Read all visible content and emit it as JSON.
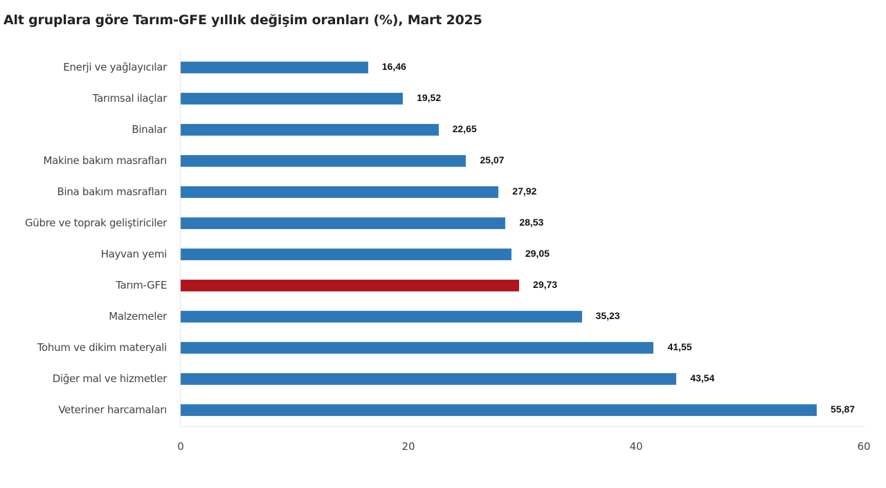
{
  "chart_data": {
    "type": "bar",
    "orientation": "horizontal",
    "title": "Alt gruplara göre Tarım-GFE yıllık değişim oranları (%), Mart 2025",
    "xlabel": "",
    "ylabel": "",
    "xlim": [
      0,
      60
    ],
    "x_ticks": [
      "0",
      "20",
      "40",
      "60"
    ],
    "grid": false,
    "legend": null,
    "categories": [
      "Enerji  ve yağlayıcılar",
      "Tarımsal ilaçlar",
      "Binalar",
      "Makine bakım masrafları",
      "Bina bakım masrafları",
      "Gübre ve toprak geliştiriciler",
      "Hayvan yemi",
      "Tarım-GFE",
      "Malzemeler",
      "Tohum ve dikim materyali",
      "Diğer mal ve hizmetler",
      "Veteriner harcamaları"
    ],
    "values": [
      16.46,
      19.52,
      22.65,
      25.07,
      27.92,
      28.53,
      29.05,
      29.73,
      35.23,
      41.55,
      43.54,
      55.87
    ],
    "value_labels": [
      "16,46",
      "19,52",
      "22,65",
      "25,07",
      "27,92",
      "28,53",
      "29,05",
      "29,73",
      "35,23",
      "41,55",
      "43,54",
      "55,87"
    ],
    "highlight_index": 7,
    "colors": {
      "bar": "#2e78b7",
      "highlight": "#ad141b"
    }
  },
  "chart": {
    "title": "Alt gruplara göre Tarım-GFE yıllık değişim oranları (%), Mart 2025",
    "ticks": [
      "0",
      "20",
      "40",
      "60"
    ],
    "rows": [
      {
        "label": "Enerji  ve yağlayıcılar",
        "value": "16,46"
      },
      {
        "label": "Tarımsal ilaçlar",
        "value": "19,52"
      },
      {
        "label": "Binalar",
        "value": "22,65"
      },
      {
        "label": "Makine bakım masrafları",
        "value": "25,07"
      },
      {
        "label": "Bina bakım masrafları",
        "value": "27,92"
      },
      {
        "label": "Gübre ve toprak geliştiriciler",
        "value": "28,53"
      },
      {
        "label": "Hayvan yemi",
        "value": "29,05"
      },
      {
        "label": "Tarım-GFE",
        "value": "29,73"
      },
      {
        "label": "Malzemeler",
        "value": "35,23"
      },
      {
        "label": "Tohum ve dikim materyali",
        "value": "41,55"
      },
      {
        "label": "Diğer mal ve hizmetler",
        "value": "43,54"
      },
      {
        "label": "Veteriner harcamaları",
        "value": "55,87"
      }
    ]
  }
}
